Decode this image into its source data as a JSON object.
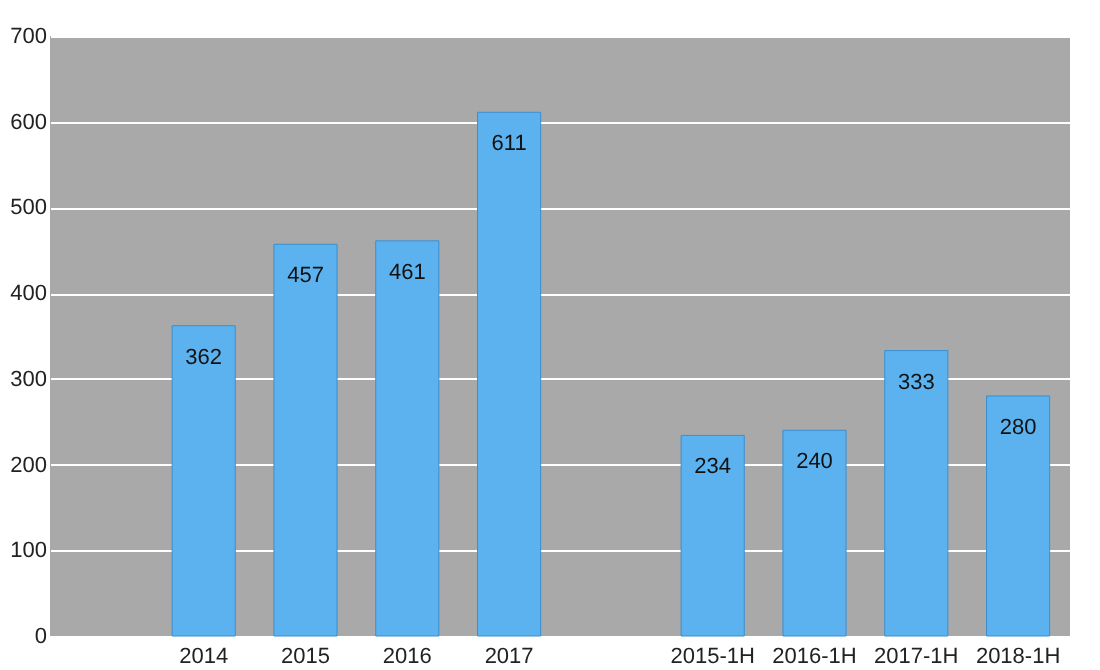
{
  "chart_data": {
    "type": "bar",
    "categories": [
      null,
      "2014",
      "2015",
      "2016",
      "2017",
      null,
      "2015-1H",
      "2016-1H",
      "2017-1H",
      "2018-1H"
    ],
    "values": [
      null,
      362,
      457,
      461,
      611,
      null,
      234,
      240,
      333,
      280
    ],
    "color": "#5cb2ee",
    "ylim": [
      0,
      700
    ],
    "yticks": [
      0,
      100,
      200,
      300,
      400,
      500,
      600,
      700
    ],
    "grid": "y",
    "data_labels": true
  }
}
